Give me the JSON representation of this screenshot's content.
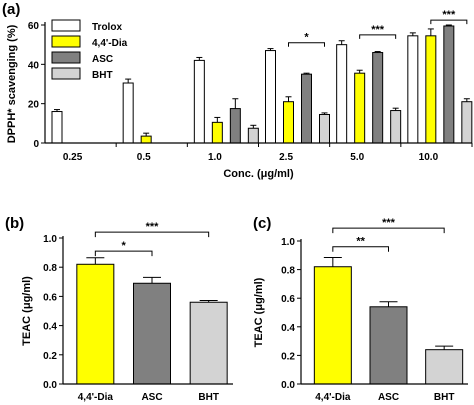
{
  "colors": {
    "Trolox": "#ffffff",
    "4,4'-Dia": "#ffff00",
    "ASC": "#808080",
    "BHT": "#d3d3d3",
    "axis": "#000000"
  },
  "chart_data": [
    {
      "panel": "(a)",
      "type": "bar",
      "xlabel": "Conc. (μg/ml)",
      "ylabel": "DPPH* scavenging (%)",
      "ylim": [
        0,
        60
      ],
      "yticks": [
        0,
        20,
        40,
        60
      ],
      "legend_placement": "top-left",
      "categories": [
        "0.25",
        "0.5",
        "1.0",
        "2.5",
        "5.0",
        "10.0"
      ],
      "series": [
        {
          "name": "Trolox",
          "values": [
            16,
            30.5,
            42,
            47,
            50,
            54.5
          ],
          "errors": [
            1,
            2,
            1.5,
            1,
            2,
            1.5
          ]
        },
        {
          "name": "4,4'-Dia",
          "values": [
            null,
            3.5,
            10.5,
            21,
            35.5,
            54.5
          ],
          "errors": [
            0,
            1.5,
            2.5,
            2.5,
            1.5,
            3.5
          ]
        },
        {
          "name": "ASC",
          "values": [
            null,
            null,
            17.5,
            35,
            46,
            59.5
          ],
          "errors": [
            0,
            0,
            5,
            0.5,
            0.5,
            0.5
          ]
        },
        {
          "name": "BHT",
          "values": [
            null,
            null,
            7.5,
            14.5,
            16.5,
            21
          ],
          "errors": [
            0,
            0,
            1.5,
            0.8,
            1.2,
            1.5
          ]
        }
      ],
      "annotations": [
        {
          "text": "*",
          "category": "2.5",
          "from_series": "4,4'-Dia",
          "to_series": "BHT",
          "level": 51
        },
        {
          "text": "***",
          "category": "5.0",
          "from_series": "4,4'-Dia",
          "to_series": "BHT",
          "level": 55
        },
        {
          "text": "***",
          "category": "10.0",
          "from_series": "4,4'-Dia",
          "to_series": "BHT",
          "level": 62.5
        }
      ]
    },
    {
      "panel": "(b)",
      "type": "bar",
      "xlabel": "",
      "ylabel": "TEAC (μg/ml)",
      "ylim": [
        0,
        1.0
      ],
      "yticks": [
        0.0,
        0.2,
        0.4,
        0.6,
        0.8,
        1.0
      ],
      "categories": [
        "4,4'-Dia",
        "ASC",
        "BHT"
      ],
      "values": [
        0.82,
        0.69,
        0.56
      ],
      "errors": [
        0.045,
        0.04,
        0.012
      ],
      "annotations": [
        {
          "text": "*",
          "from": "4,4'-Dia",
          "to": "ASC",
          "level": 0.91
        },
        {
          "text": "***",
          "from": "4,4'-Dia",
          "to": "BHT",
          "level": 1.04
        }
      ]
    },
    {
      "panel": "(c)",
      "type": "bar",
      "xlabel": "",
      "ylabel": "TEAC (μg/ml)",
      "ylim": [
        0,
        1.0
      ],
      "yticks": [
        0.0,
        0.2,
        0.4,
        0.6,
        0.8,
        1.0
      ],
      "categories": [
        "4,4'-Dia",
        "ASC",
        "BHT"
      ],
      "values": [
        0.82,
        0.54,
        0.24
      ],
      "errors": [
        0.065,
        0.035,
        0.025
      ],
      "annotations": [
        {
          "text": "**",
          "from": "4,4'-Dia",
          "to": "ASC",
          "level": 0.96
        },
        {
          "text": "***",
          "from": "4,4'-Dia",
          "to": "BHT",
          "level": 1.09
        }
      ]
    }
  ]
}
